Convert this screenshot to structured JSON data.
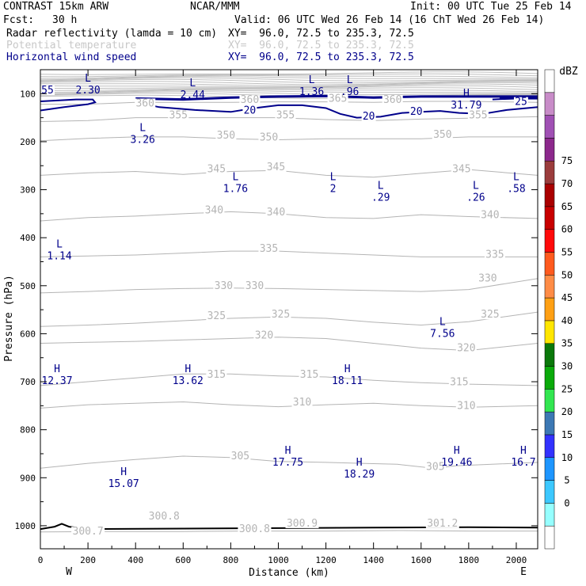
{
  "header": {
    "model": "CONTRAST 15km ARW",
    "source": "NCAR/MMM",
    "init": "Init: 00 UTC Tue 25 Feb 14",
    "fcst_label": "Fcst:",
    "fcst_value": "30 h",
    "valid": "Valid: 06 UTC Wed 26 Feb 14 (16 ChT Wed 26 Feb 14)"
  },
  "fields": [
    {
      "label": "Radar reflectivity (lamda = 10 cm)",
      "xy": "XY=  96.0, 72.5 to 235.3, 72.5",
      "color": "#000000"
    },
    {
      "label": "Potential temperature",
      "xy": "XY=  96.0, 72.5 to 235.3, 72.5",
      "color": "#c8c8c8"
    },
    {
      "label": "Horizontal wind speed",
      "xy": "XY=  96.0, 72.5 to 235.3, 72.5",
      "color": "#00008b"
    }
  ],
  "chart_data": {
    "type": "cross-section",
    "xlabel": "Distance (km)",
    "ylabel": "Pressure (hPa)",
    "xlim": [
      0,
      2090
    ],
    "ylim": [
      1048,
      50
    ],
    "x_ticks": [
      "0",
      "200",
      "400",
      "600",
      "800",
      "1000",
      "1200",
      "1400",
      "1600",
      "1800",
      "2000"
    ],
    "y_ticks": [
      "100",
      "200",
      "300",
      "400",
      "500",
      "600",
      "700",
      "800",
      "900",
      "1000"
    ],
    "endpoints": {
      "left": "W",
      "right": "E"
    },
    "colorbar": {
      "units": "dBZ",
      "levels": [
        "0",
        "5",
        "10",
        "15",
        "20",
        "25",
        "30",
        "35",
        "40",
        "45",
        "50",
        "55",
        "60",
        "65",
        "70",
        "75"
      ],
      "colors": [
        "#ffffff",
        "#96ffff",
        "#3cc8ff",
        "#1e96ff",
        "#3232ff",
        "#3c78b4",
        "#32e650",
        "#0aaa0a",
        "#0a780a",
        "#ffe600",
        "#ffa014",
        "#ff8c46",
        "#ff5a1e",
        "#ff0a0a",
        "#c80000",
        "#aa0000",
        "#9b3c3c",
        "#8c288c",
        "#a050b4",
        "#c88cc8",
        "#ffffff"
      ]
    },
    "theta_contours": [
      {
        "label": "300",
        "points": [
          [
            0,
            1013
          ],
          [
            300,
            1012
          ],
          [
            600,
            1012
          ],
          [
            900,
            1011
          ],
          [
            1200,
            1011
          ],
          [
            1500,
            1010
          ],
          [
            1800,
            1011
          ],
          [
            2090,
            1011
          ]
        ]
      },
      {
        "label": "305",
        "points": [
          [
            0,
            880
          ],
          [
            200,
            870
          ],
          [
            400,
            862
          ],
          [
            600,
            855
          ],
          [
            800,
            858
          ],
          [
            1000,
            866
          ],
          [
            1200,
            868
          ],
          [
            1350,
            870
          ],
          [
            1500,
            872
          ],
          [
            1650,
            880
          ],
          [
            1750,
            875
          ],
          [
            2090,
            868
          ]
        ]
      },
      {
        "label": "310",
        "points": [
          [
            0,
            755
          ],
          [
            200,
            748
          ],
          [
            400,
            745
          ],
          [
            600,
            742
          ],
          [
            800,
            748
          ],
          [
            1000,
            752
          ],
          [
            1200,
            748
          ],
          [
            1400,
            745
          ],
          [
            1600,
            750
          ],
          [
            1800,
            753
          ],
          [
            2090,
            750
          ]
        ]
      },
      {
        "label": "315",
        "points": [
          [
            0,
            708
          ],
          [
            200,
            700
          ],
          [
            400,
            692
          ],
          [
            600,
            684
          ],
          [
            800,
            684
          ],
          [
            1000,
            688
          ],
          [
            1200,
            690
          ],
          [
            1400,
            697
          ],
          [
            1600,
            702
          ],
          [
            1800,
            705
          ],
          [
            2090,
            708
          ]
        ]
      },
      {
        "label": "320",
        "points": [
          [
            0,
            620
          ],
          [
            200,
            618
          ],
          [
            400,
            616
          ],
          [
            600,
            613
          ],
          [
            800,
            610
          ],
          [
            1000,
            607
          ],
          [
            1200,
            610
          ],
          [
            1400,
            620
          ],
          [
            1600,
            630
          ],
          [
            1800,
            635
          ],
          [
            2090,
            620
          ]
        ]
      },
      {
        "label": "325",
        "points": [
          [
            0,
            585
          ],
          [
            200,
            582
          ],
          [
            400,
            578
          ],
          [
            600,
            573
          ],
          [
            800,
            568
          ],
          [
            1000,
            565
          ],
          [
            1200,
            568
          ],
          [
            1400,
            576
          ],
          [
            1600,
            582
          ],
          [
            1800,
            575
          ],
          [
            2090,
            555
          ]
        ]
      },
      {
        "label": "330",
        "points": [
          [
            0,
            515
          ],
          [
            200,
            512
          ],
          [
            400,
            508
          ],
          [
            600,
            506
          ],
          [
            800,
            505
          ],
          [
            1000,
            506
          ],
          [
            1200,
            508
          ],
          [
            1400,
            510
          ],
          [
            1600,
            512
          ],
          [
            1800,
            508
          ],
          [
            2090,
            485
          ]
        ]
      },
      {
        "label": "335",
        "points": [
          [
            0,
            440
          ],
          [
            200,
            438
          ],
          [
            400,
            436
          ],
          [
            600,
            432
          ],
          [
            800,
            428
          ],
          [
            1000,
            428
          ],
          [
            1200,
            432
          ],
          [
            1400,
            436
          ],
          [
            1600,
            440
          ],
          [
            1800,
            440
          ],
          [
            2090,
            440
          ]
        ]
      },
      {
        "label": "340",
        "points": [
          [
            0,
            365
          ],
          [
            200,
            358
          ],
          [
            400,
            355
          ],
          [
            600,
            350
          ],
          [
            800,
            346
          ],
          [
            1000,
            350
          ],
          [
            1200,
            358
          ],
          [
            1400,
            360
          ],
          [
            1600,
            352
          ],
          [
            1800,
            356
          ],
          [
            2090,
            360
          ]
        ]
      },
      {
        "label": "345",
        "points": [
          [
            0,
            270
          ],
          [
            200,
            265
          ],
          [
            400,
            262
          ],
          [
            600,
            268
          ],
          [
            800,
            262
          ],
          [
            1000,
            260
          ],
          [
            1200,
            270
          ],
          [
            1400,
            274
          ],
          [
            1600,
            266
          ],
          [
            1800,
            258
          ],
          [
            2090,
            270
          ]
        ]
      },
      {
        "label": "350",
        "points": [
          [
            0,
            198
          ],
          [
            200,
            193
          ],
          [
            400,
            190
          ],
          [
            600,
            190
          ],
          [
            800,
            194
          ],
          [
            1000,
            196
          ],
          [
            1200,
            194
          ],
          [
            1400,
            194
          ],
          [
            1600,
            194
          ],
          [
            1800,
            190
          ],
          [
            2090,
            190
          ]
        ]
      },
      {
        "label": "355",
        "points": [
          [
            0,
            158
          ],
          [
            200,
            156
          ],
          [
            400,
            150
          ],
          [
            600,
            150
          ],
          [
            800,
            150
          ],
          [
            1000,
            150
          ],
          [
            1200,
            154
          ],
          [
            1400,
            156
          ],
          [
            1600,
            153
          ],
          [
            1800,
            151
          ],
          [
            2090,
            148
          ]
        ]
      },
      {
        "label": "360",
        "points": [
          [
            0,
            122
          ],
          [
            200,
            122
          ],
          [
            400,
            118
          ],
          [
            600,
            118
          ],
          [
            800,
            118
          ],
          [
            1000,
            117
          ],
          [
            1200,
            117
          ],
          [
            1400,
            118
          ],
          [
            1600,
            116
          ],
          [
            1800,
            116
          ],
          [
            2090,
            118
          ]
        ]
      }
    ],
    "theta_labels": [
      {
        "text": "300.7",
        "x": 200,
        "p": 1017
      },
      {
        "text": "300.8",
        "x": 520,
        "p": 985
      },
      {
        "text": "300.8",
        "x": 900,
        "p": 1012
      },
      {
        "text": "300.9",
        "x": 1100,
        "p": 1000
      },
      {
        "text": "301.2",
        "x": 1690,
        "p": 1000
      },
      {
        "text": "305",
        "x": 840,
        "p": 860
      },
      {
        "text": "305",
        "x": 1660,
        "p": 882
      },
      {
        "text": "310",
        "x": 1100,
        "p": 748
      },
      {
        "text": "310",
        "x": 1790,
        "p": 755
      },
      {
        "text": "315",
        "x": 740,
        "p": 690
      },
      {
        "text": "315",
        "x": 1130,
        "p": 690
      },
      {
        "text": "315",
        "x": 1760,
        "p": 706
      },
      {
        "text": "320",
        "x": 940,
        "p": 608
      },
      {
        "text": "320",
        "x": 1790,
        "p": 635
      },
      {
        "text": "325",
        "x": 740,
        "p": 568
      },
      {
        "text": "325",
        "x": 1010,
        "p": 565
      },
      {
        "text": "325",
        "x": 1890,
        "p": 565
      },
      {
        "text": "330",
        "x": 770,
        "p": 505
      },
      {
        "text": "330",
        "x": 900,
        "p": 505
      },
      {
        "text": "330",
        "x": 1880,
        "p": 490
      },
      {
        "text": "335",
        "x": 960,
        "p": 428
      },
      {
        "text": "335",
        "x": 1910,
        "p": 440
      },
      {
        "text": "340",
        "x": 730,
        "p": 348
      },
      {
        "text": "340",
        "x": 990,
        "p": 352
      },
      {
        "text": "340",
        "x": 1890,
        "p": 358
      },
      {
        "text": "345",
        "x": 740,
        "p": 262
      },
      {
        "text": "345",
        "x": 990,
        "p": 258
      },
      {
        "text": "345",
        "x": 1770,
        "p": 262
      },
      {
        "text": "350",
        "x": 780,
        "p": 192
      },
      {
        "text": "350",
        "x": 960,
        "p": 196
      },
      {
        "text": "350",
        "x": 1690,
        "p": 190
      },
      {
        "text": "355",
        "x": 580,
        "p": 150
      },
      {
        "text": "355",
        "x": 1030,
        "p": 150
      },
      {
        "text": "355",
        "x": 1840,
        "p": 150
      },
      {
        "text": "360",
        "x": 880,
        "p": 118
      },
      {
        "text": "360",
        "x": 1480,
        "p": 118
      },
      {
        "text": "365",
        "x": 1250,
        "p": 115
      },
      {
        "text": "360",
        "x": 440,
        "p": 125
      }
    ],
    "wind_contours": [
      {
        "label": "20",
        "points": [
          [
            0,
            135
          ],
          [
            100,
            128
          ],
          [
            200,
            122
          ],
          [
            230,
            118
          ],
          [
            220,
            112
          ],
          [
            150,
            112
          ],
          [
            80,
            114
          ],
          [
            0,
            116
          ]
        ]
      },
      {
        "label": "20",
        "points": [
          [
            400,
            118
          ],
          [
            500,
            128
          ],
          [
            650,
            134
          ],
          [
            800,
            138
          ],
          [
            900,
            130
          ],
          [
            1000,
            124
          ],
          [
            1100,
            124
          ],
          [
            1200,
            130
          ],
          [
            1260,
            142
          ],
          [
            1330,
            150
          ],
          [
            1430,
            148
          ],
          [
            1520,
            140
          ],
          [
            1600,
            138
          ],
          [
            1680,
            136
          ],
          [
            1760,
            140
          ],
          [
            1860,
            142
          ],
          [
            1960,
            134
          ],
          [
            2090,
            128
          ]
        ]
      },
      {
        "label": "25",
        "points": [
          [
            1900,
            112
          ],
          [
            2000,
            110
          ],
          [
            2090,
            108
          ]
        ]
      },
      {
        "label": "",
        "points": [
          [
            400,
            110
          ],
          [
            600,
            112
          ],
          [
            800,
            108
          ],
          [
            1000,
            106
          ],
          [
            1200,
            105
          ],
          [
            1400,
            108
          ],
          [
            1600,
            106
          ],
          [
            1800,
            106
          ],
          [
            2090,
            106
          ]
        ]
      }
    ],
    "wind_labels": [
      {
        "text": "55",
        "x": 30,
        "p": 98
      },
      {
        "text": "20",
        "x": 880,
        "p": 140
      },
      {
        "text": "20",
        "x": 1380,
        "p": 152
      },
      {
        "text": "20",
        "x": 1580,
        "p": 142
      },
      {
        "text": "25",
        "x": 2020,
        "p": 122
      }
    ],
    "extrema": [
      {
        "type": "L",
        "value": "2.30",
        "x": 200,
        "p": 75
      },
      {
        "type": "L",
        "value": "2.44",
        "x": 640,
        "p": 85
      },
      {
        "type": "L",
        "value": "1.36",
        "x": 1140,
        "p": 78
      },
      {
        "type": "L",
        "value": ".96",
        "x": 1300,
        "p": 78
      },
      {
        "type": "H",
        "value": "31.79",
        "x": 1790,
        "p": 106
      },
      {
        "type": "L",
        "value": "3.26",
        "x": 430,
        "p": 178
      },
      {
        "type": "L",
        "value": "1.76",
        "x": 820,
        "p": 280
      },
      {
        "type": "L",
        "value": "2",
        "x": 1230,
        "p": 280
      },
      {
        "type": "L",
        "value": ".29",
        "x": 1430,
        "p": 298
      },
      {
        "type": "L",
        "value": ".26",
        "x": 1830,
        "p": 298
      },
      {
        "type": "L",
        "value": ".58",
        "x": 2000,
        "p": 280
      },
      {
        "type": "L",
        "value": "1.14",
        "x": 80,
        "p": 420
      },
      {
        "type": "L",
        "value": "7.56",
        "x": 1690,
        "p": 582
      },
      {
        "type": "H",
        "value": "12.37",
        "x": 70,
        "p": 680
      },
      {
        "type": "H",
        "value": "13.62",
        "x": 620,
        "p": 680
      },
      {
        "type": "H",
        "value": "18.11",
        "x": 1290,
        "p": 680
      },
      {
        "type": "H",
        "value": "17.75",
        "x": 1040,
        "p": 850
      },
      {
        "type": "H",
        "value": "18.29",
        "x": 1340,
        "p": 875
      },
      {
        "type": "H",
        "value": "19.46",
        "x": 1750,
        "p": 850
      },
      {
        "type": "H",
        "value": "16.7",
        "x": 2030,
        "p": 850
      },
      {
        "type": "H",
        "value": "15.07",
        "x": 350,
        "p": 895
      }
    ],
    "reflectivity_line": {
      "points": [
        [
          0,
          1007
        ],
        [
          60,
          1002
        ],
        [
          90,
          996
        ],
        [
          120,
          1002
        ],
        [
          200,
          1007
        ],
        [
          600,
          1006
        ],
        [
          1000,
          1005
        ],
        [
          1400,
          1004
        ],
        [
          1800,
          1003
        ],
        [
          2090,
          1004
        ]
      ]
    }
  }
}
